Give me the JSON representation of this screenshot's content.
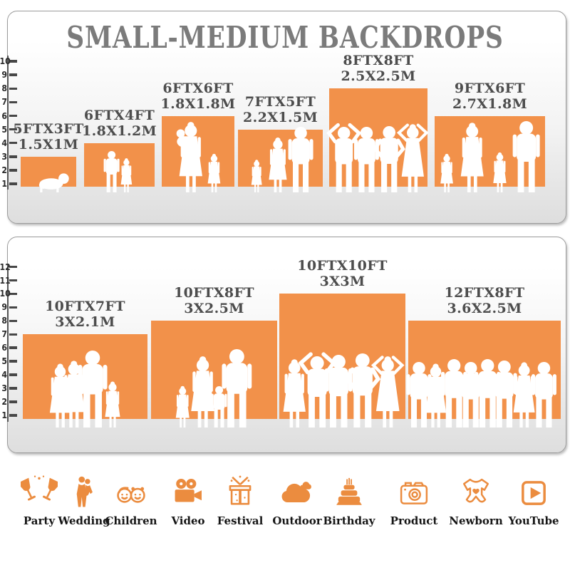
{
  "title": "SMALL-MEDIUM BACKDROPS",
  "colors": {
    "bar_orange": "#F2914A",
    "icon_orange": "#EB8C3F",
    "title_gray": "#7B7B7B",
    "label_gray": "#4D4D4D",
    "tick_dark": "#474747",
    "panel_border": "#9C9C9C",
    "panel_gray_bottom": "#E3E3E3",
    "silhouette_white": "#FFFFFF"
  },
  "panels": [
    {
      "name": "small-backdrops-panel",
      "ruler_unit_max": 10,
      "tick_labels": [
        "1",
        "2",
        "3",
        "4",
        "5",
        "6",
        "7",
        "8",
        "9",
        "10"
      ],
      "bars": [
        {
          "size_ft": "5FTX3FT",
          "size_m": "1.5X1M",
          "width_ft": 5,
          "height_ft": 3
        },
        {
          "size_ft": "6FTX4FT",
          "size_m": "1.8X1.2M",
          "width_ft": 6,
          "height_ft": 4
        },
        {
          "size_ft": "6FTX6FT",
          "size_m": "1.8X1.8M",
          "width_ft": 6,
          "height_ft": 6
        },
        {
          "size_ft": "7FTX5FT",
          "size_m": "2.2X1.5M",
          "width_ft": 7,
          "height_ft": 5
        },
        {
          "size_ft": "8FTX8FT",
          "size_m": "2.5X2.5M",
          "width_ft": 8,
          "height_ft": 8
        },
        {
          "size_ft": "9FTX6FT",
          "size_m": "2.7X1.8M",
          "width_ft": 9,
          "height_ft": 6
        }
      ]
    },
    {
      "name": "medium-backdrops-panel",
      "ruler_unit_max": 12,
      "tick_labels": [
        "1",
        "2",
        "3",
        "4",
        "5",
        "6",
        "7",
        "8",
        "9",
        "10",
        "11",
        "12"
      ],
      "bars": [
        {
          "size_ft": "10FTX7FT",
          "size_m": "3X2.1M",
          "width_ft": 10,
          "height_ft": 7
        },
        {
          "size_ft": "10FTX8FT",
          "size_m": "3X2.5M",
          "width_ft": 10,
          "height_ft": 8
        },
        {
          "size_ft": "10FTX10FT",
          "size_m": "3X3M",
          "width_ft": 10,
          "height_ft": 10
        },
        {
          "size_ft": "12FTX8FT",
          "size_m": "3.6X2.5M",
          "width_ft": 12,
          "height_ft": 8
        }
      ]
    }
  ],
  "categories": [
    {
      "label": "Party",
      "icon": "party-icon"
    },
    {
      "label": "Wedding",
      "icon": "wedding-icon"
    },
    {
      "label": "Children",
      "icon": "children-icon"
    },
    {
      "label": "Video",
      "icon": "video-camera-icon"
    },
    {
      "label": "Festival",
      "icon": "gift-icon"
    },
    {
      "label": "Outdoor",
      "icon": "cloud-icon"
    },
    {
      "label": "Birthday",
      "icon": "cake-icon"
    },
    {
      "label": "Product",
      "icon": "photo-camera-icon"
    },
    {
      "label": "Newborn",
      "icon": "onesie-icon"
    },
    {
      "label": "YouTube",
      "icon": "youtube-icon"
    }
  ]
}
